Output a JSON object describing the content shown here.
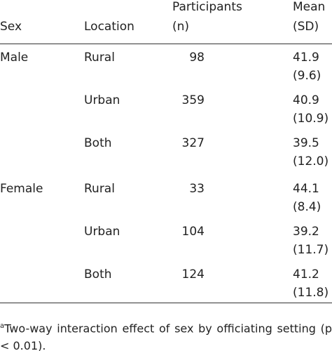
{
  "table": {
    "header": [
      [
        "Sex"
      ],
      [
        "Location"
      ],
      [
        "Participants",
        "(n)"
      ],
      [
        "Mean",
        "(SD)"
      ]
    ],
    "groups": [
      {
        "sex": "Male",
        "rows": [
          {
            "location": "Rural",
            "n": 98,
            "mean": 41.9,
            "sd": "(9.6)"
          },
          {
            "location": "Urban",
            "n": 359,
            "mean": 40.9,
            "sd": "(10.9)"
          },
          {
            "location": "Both",
            "n": 327,
            "mean": 39.5,
            "sd": "(12.0)"
          }
        ]
      },
      {
        "sex": "Female",
        "rows": [
          {
            "location": "Rural",
            "n": 33,
            "mean": 44.1,
            "sd": "(8.4)"
          },
          {
            "location": "Urban",
            "n": 104,
            "mean": 39.2,
            "sd": "(11.7)"
          },
          {
            "location": "Both",
            "n": 124,
            "mean": 41.2,
            "sd": "(11.8)"
          }
        ]
      }
    ],
    "footnote": {
      "marker": "a",
      "text": "Two-way interaction effect of sex by officiating setting (p < 0.01)."
    }
  }
}
